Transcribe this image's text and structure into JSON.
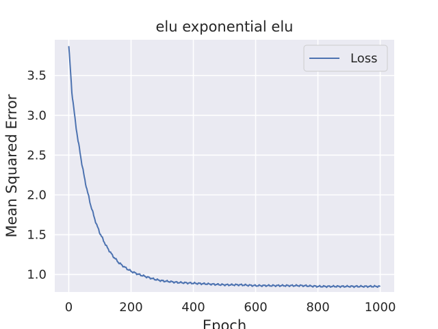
{
  "chart_data": {
    "type": "line",
    "title": "elu exponential elu",
    "xlabel": "Epoch",
    "ylabel": "Mean Squared Error",
    "xlim": [
      -45,
      1045
    ],
    "ylim": [
      0.78,
      3.95
    ],
    "xticks": [
      0,
      200,
      400,
      600,
      800,
      1000
    ],
    "yticks": [
      1.0,
      1.5,
      2.0,
      2.5,
      3.0,
      3.5
    ],
    "xtick_labels": [
      "0",
      "200",
      "400",
      "600",
      "800",
      "1000"
    ],
    "ytick_labels": [
      "1.0",
      "1.5",
      "2.0",
      "2.5",
      "3.0",
      "3.5"
    ],
    "grid": true,
    "legend_position": "top-right",
    "series": [
      {
        "name": "Loss",
        "color": "#4c72b0",
        "x": [
          0,
          10,
          20,
          30,
          40,
          50,
          60,
          70,
          80,
          90,
          100,
          120,
          140,
          160,
          180,
          200,
          225,
          250,
          275,
          300,
          350,
          400,
          450,
          500,
          550,
          600,
          650,
          700,
          750,
          800,
          850,
          900,
          950,
          1000
        ],
        "y": [
          3.87,
          3.3,
          2.95,
          2.68,
          2.44,
          2.22,
          2.04,
          1.88,
          1.74,
          1.62,
          1.52,
          1.36,
          1.24,
          1.15,
          1.09,
          1.04,
          1.0,
          0.97,
          0.94,
          0.92,
          0.9,
          0.89,
          0.88,
          0.87,
          0.87,
          0.86,
          0.86,
          0.86,
          0.86,
          0.85,
          0.85,
          0.85,
          0.85,
          0.85
        ]
      }
    ]
  }
}
